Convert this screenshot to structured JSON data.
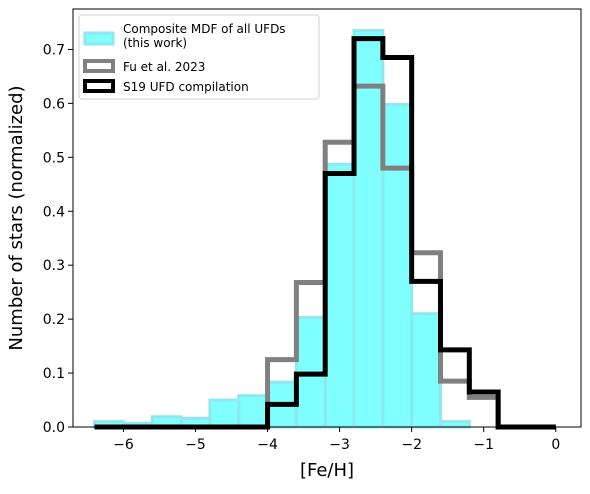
{
  "chart_data": {
    "type": "bar",
    "xlabel": "[Fe/H]",
    "ylabel": "Number of stars (normalized)",
    "xlim": [
      -6.7,
      0.35
    ],
    "ylim": [
      0,
      0.775
    ],
    "xticks": [
      -6,
      -5,
      -4,
      -3,
      -2,
      -1,
      0
    ],
    "xtick_labels": [
      "−6",
      "−5",
      "−4",
      "−3",
      "−2",
      "−1",
      "0"
    ],
    "yticks": [
      0.0,
      0.1,
      0.2,
      0.3,
      0.4,
      0.5,
      0.6,
      0.7
    ],
    "ytick_labels": [
      "0.0",
      "0.1",
      "0.2",
      "0.3",
      "0.4",
      "0.5",
      "0.6",
      "0.7"
    ],
    "grid": false,
    "legend_position": "top-left",
    "bin_edges": [
      -6.4,
      -6.0,
      -5.6,
      -5.2,
      -4.8,
      -4.4,
      -4.0,
      -3.6,
      -3.2,
      -2.8,
      -2.4,
      -2.0,
      -1.6,
      -1.2,
      -0.8,
      -0.4,
      0.0
    ],
    "series": [
      {
        "name": "Composite MDF of all UFDs\n(this work)",
        "label_lines": [
          "Composite MDF of all UFDs",
          "(this work)"
        ],
        "style": "filled",
        "color": "#00ffff",
        "edge_color": "#8ee8ee",
        "values": [
          0.01,
          0.007,
          0.019,
          0.016,
          0.05,
          0.058,
          0.083,
          0.203,
          0.487,
          0.735,
          0.598,
          0.21,
          0.01,
          0.0,
          0.0,
          0.0
        ]
      },
      {
        "name": "Fu et al. 2023",
        "style": "step",
        "color": "#808080",
        "values": [
          0.0,
          0.0,
          0.0,
          0.0,
          0.0,
          0.0,
          0.125,
          0.268,
          0.528,
          0.632,
          0.48,
          0.323,
          0.085,
          0.055,
          0.0,
          0.0
        ]
      },
      {
        "name": "S19 UFD compilation",
        "style": "step",
        "color": "#000000",
        "values": [
          0.0,
          0.0,
          0.0,
          0.0,
          0.0,
          0.0,
          0.042,
          0.098,
          0.47,
          0.72,
          0.685,
          0.27,
          0.143,
          0.065,
          0.0,
          0.0
        ]
      }
    ]
  }
}
